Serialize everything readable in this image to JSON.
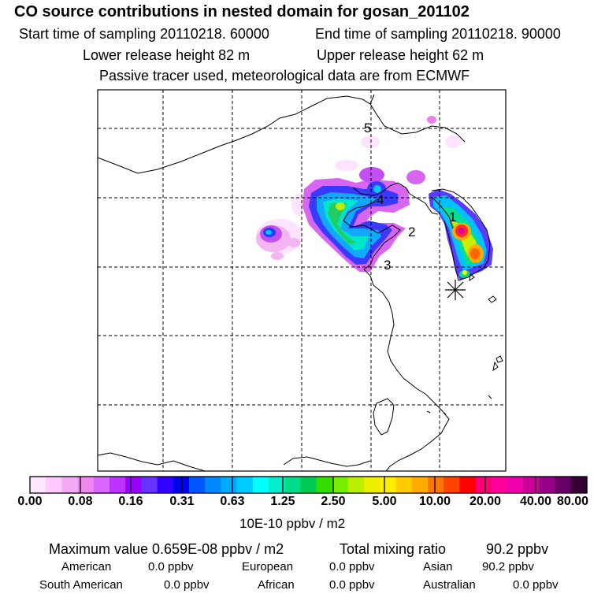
{
  "header": {
    "title": "CO  source contributions in nested domain for gosan_201102",
    "start_label": "Start time of sampling 20110218. 60000",
    "end_label": "End time of sampling 20110218. 90000",
    "lower_label": "Lower release height   82 m",
    "upper_label": "Upper release height   62 m",
    "tracer_label": "Passive tracer used, meteorological data are from ECMWF"
  },
  "map": {
    "region_labels": [
      "1",
      "2",
      "3",
      "4",
      "5"
    ],
    "receptor": "gosan",
    "receptor_marker_icon": "asterisk-icon"
  },
  "colorbar": {
    "colors": [
      "#ffe6ff",
      "#ffccff",
      "#f5aaf5",
      "#ee88ee",
      "#d966ff",
      "#bb33ff",
      "#9900ff",
      "#6633ff",
      "#3300ff",
      "#0000ee",
      "#0055ff",
      "#0088ff",
      "#00aaff",
      "#00ccff",
      "#00ffff",
      "#00eecc",
      "#00dd88",
      "#00cc55",
      "#33dd00",
      "#77ee00",
      "#bbee00",
      "#eeee00",
      "#ffee00",
      "#ffcc00",
      "#ffaa00",
      "#ff7700",
      "#ff4400",
      "#ff0000",
      "#ff0077",
      "#ff0099",
      "#ee00aa",
      "#cc0099",
      "#990088",
      "#660066",
      "#330033"
    ],
    "tick_labels": [
      "0.00",
      "0.08",
      "0.16",
      "0.31",
      "0.63",
      "1.25",
      "2.50",
      "5.00",
      "10.00",
      "20.00",
      "40.00",
      "80.00"
    ],
    "units": "10E-10 ppbv / m2"
  },
  "summary": {
    "max_label": "Maximum value  0.659E-08 ppbv / m2",
    "total_label": "Total mixing ratio",
    "total_value": "90.2 ppbv",
    "regions": [
      {
        "name": "American",
        "value": "0.0 ppbv"
      },
      {
        "name": "European",
        "value": "0.0 ppbv"
      },
      {
        "name": "Asian",
        "value": "90.2 ppbv"
      },
      {
        "name": "South American",
        "value": "0.0 ppbv"
      },
      {
        "name": "African",
        "value": "0.0 ppbv"
      },
      {
        "name": "Australian",
        "value": "0.0 ppbv"
      }
    ]
  }
}
